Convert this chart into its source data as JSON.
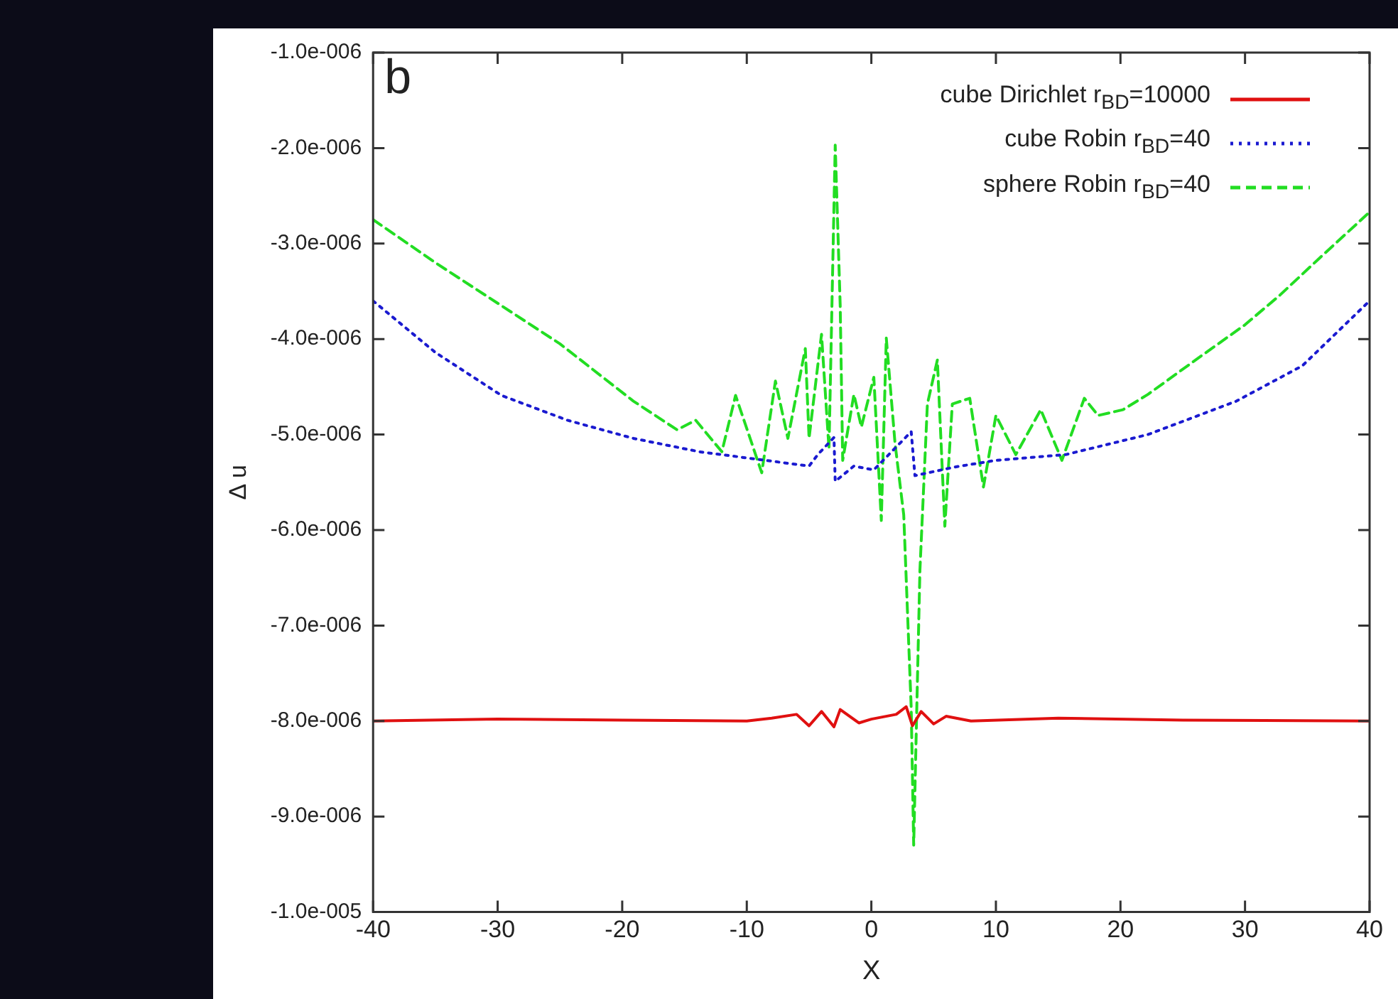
{
  "chart_data": {
    "type": "line",
    "xlabel": "X",
    "ylabel": "Δ u",
    "annotations": [
      "b"
    ],
    "xlim": [
      -40,
      40
    ],
    "xticks": [
      -40,
      -30,
      -20,
      -10,
      0,
      10,
      20,
      30,
      40
    ],
    "ylim": [
      -1e-05,
      -1e-06
    ],
    "yticks": [
      {
        "value": -1e-05,
        "label": "-1.0e-005"
      },
      {
        "value": -9e-06,
        "label": "-9.0e-006"
      },
      {
        "value": -8e-06,
        "label": "-8.0e-006"
      },
      {
        "value": -7e-06,
        "label": "-7.0e-006"
      },
      {
        "value": -6e-06,
        "label": "-6.0e-006"
      },
      {
        "value": -5e-06,
        "label": "-5.0e-006"
      },
      {
        "value": -4e-06,
        "label": "-4.0e-006"
      },
      {
        "value": -3e-06,
        "label": "-3.0e-006"
      },
      {
        "value": -2e-06,
        "label": "-2.0e-006"
      },
      {
        "value": -1e-06,
        "label": "-1.0e-006"
      }
    ],
    "grid": false,
    "legend": "top right",
    "marker": "none",
    "series": [
      {
        "name": "cube Dirichlet r$_{BD}$=10000",
        "color": "#e01010",
        "line_style": "solid",
        "x": [
          -40,
          -30,
          -20,
          -10,
          -8,
          -6,
          -5,
          -4,
          -3,
          -2.5,
          -1,
          0,
          2,
          2.8,
          3.3,
          4,
          5,
          6,
          8,
          15,
          25,
          40
        ],
        "values": [
          -8e-06,
          -7.98e-06,
          -7.99e-06,
          -8e-06,
          -7.97e-06,
          -7.93e-06,
          -8.05e-06,
          -7.9e-06,
          -8.06e-06,
          -7.88e-06,
          -8.02e-06,
          -7.98e-06,
          -7.93e-06,
          -7.85e-06,
          -8.05e-06,
          -7.9e-06,
          -8.03e-06,
          -7.95e-06,
          -8e-06,
          -7.97e-06,
          -7.99e-06,
          -8e-06
        ]
      },
      {
        "name": "cube Robin r$_{BD}$=40",
        "color": "#1a1ad0",
        "line_style": "dotted",
        "x": [
          -40,
          -35,
          -29.7,
          -24.4,
          -19.1,
          -13.8,
          -8.5,
          -5,
          -4.3,
          -3,
          -2.9,
          -1.4,
          0.2,
          3.2,
          3.5,
          6.7,
          10,
          15.6,
          22.2,
          29.3,
          34.6,
          40
        ],
        "values": [
          -3.6e-06,
          -4.14e-06,
          -4.59e-06,
          -4.85e-06,
          -5.04e-06,
          -5.18e-06,
          -5.27e-06,
          -5.33e-06,
          -5.21e-06,
          -5.03e-06,
          -5.49e-06,
          -5.33e-06,
          -5.37e-06,
          -4.97e-06,
          -5.43e-06,
          -5.34e-06,
          -5.27e-06,
          -5.21e-06,
          -5e-06,
          -4.65e-06,
          -4.28e-06,
          -3.6e-06
        ]
      },
      {
        "name": "sphere Robin r$_{BD}$=40",
        "color": "#22dd22",
        "line_style": "dashed",
        "x": [
          -40,
          -35,
          -29.7,
          -25,
          -19.1,
          -15.6,
          -14.1,
          -12,
          -10.9,
          -8.8,
          -7.7,
          -6.7,
          -5.3,
          -5,
          -4,
          -3.4,
          -2.9,
          -2.5,
          -2.3,
          -1.4,
          -0.8,
          0.2,
          0.8,
          1.2,
          1.9,
          2.6,
          3.2,
          3.4,
          3.9,
          4.5,
          5.3,
          5.9,
          6.5,
          7.9,
          9,
          10,
          11.6,
          13.6,
          15.3,
          17.1,
          18.2,
          20.2,
          22.2,
          25.7,
          30,
          32.8,
          36,
          40
        ],
        "values": [
          -2.75e-06,
          -3.2e-06,
          -3.65e-06,
          -4.05e-06,
          -4.65e-06,
          -4.95e-06,
          -4.85e-06,
          -5.18e-06,
          -4.59e-06,
          -5.4e-06,
          -4.44e-06,
          -5.04e-06,
          -4.1e-06,
          -5.04e-06,
          -3.95e-06,
          -5.15e-06,
          -1.97e-06,
          -3.65e-06,
          -5.27e-06,
          -4.58e-06,
          -4.92e-06,
          -4.4e-06,
          -5.9e-06,
          -3.99e-06,
          -5.09e-06,
          -5.84e-06,
          -7.86e-06,
          -9.3e-06,
          -6.42e-06,
          -4.68e-06,
          -4.22e-06,
          -5.96e-06,
          -4.68e-06,
          -4.62e-06,
          -5.55e-06,
          -4.8e-06,
          -5.21e-06,
          -4.74e-06,
          -5.27e-06,
          -4.62e-06,
          -4.8e-06,
          -4.74e-06,
          -4.58e-06,
          -4.25e-06,
          -3.85e-06,
          -3.54e-06,
          -3.15e-06,
          -2.67e-06
        ]
      }
    ]
  }
}
